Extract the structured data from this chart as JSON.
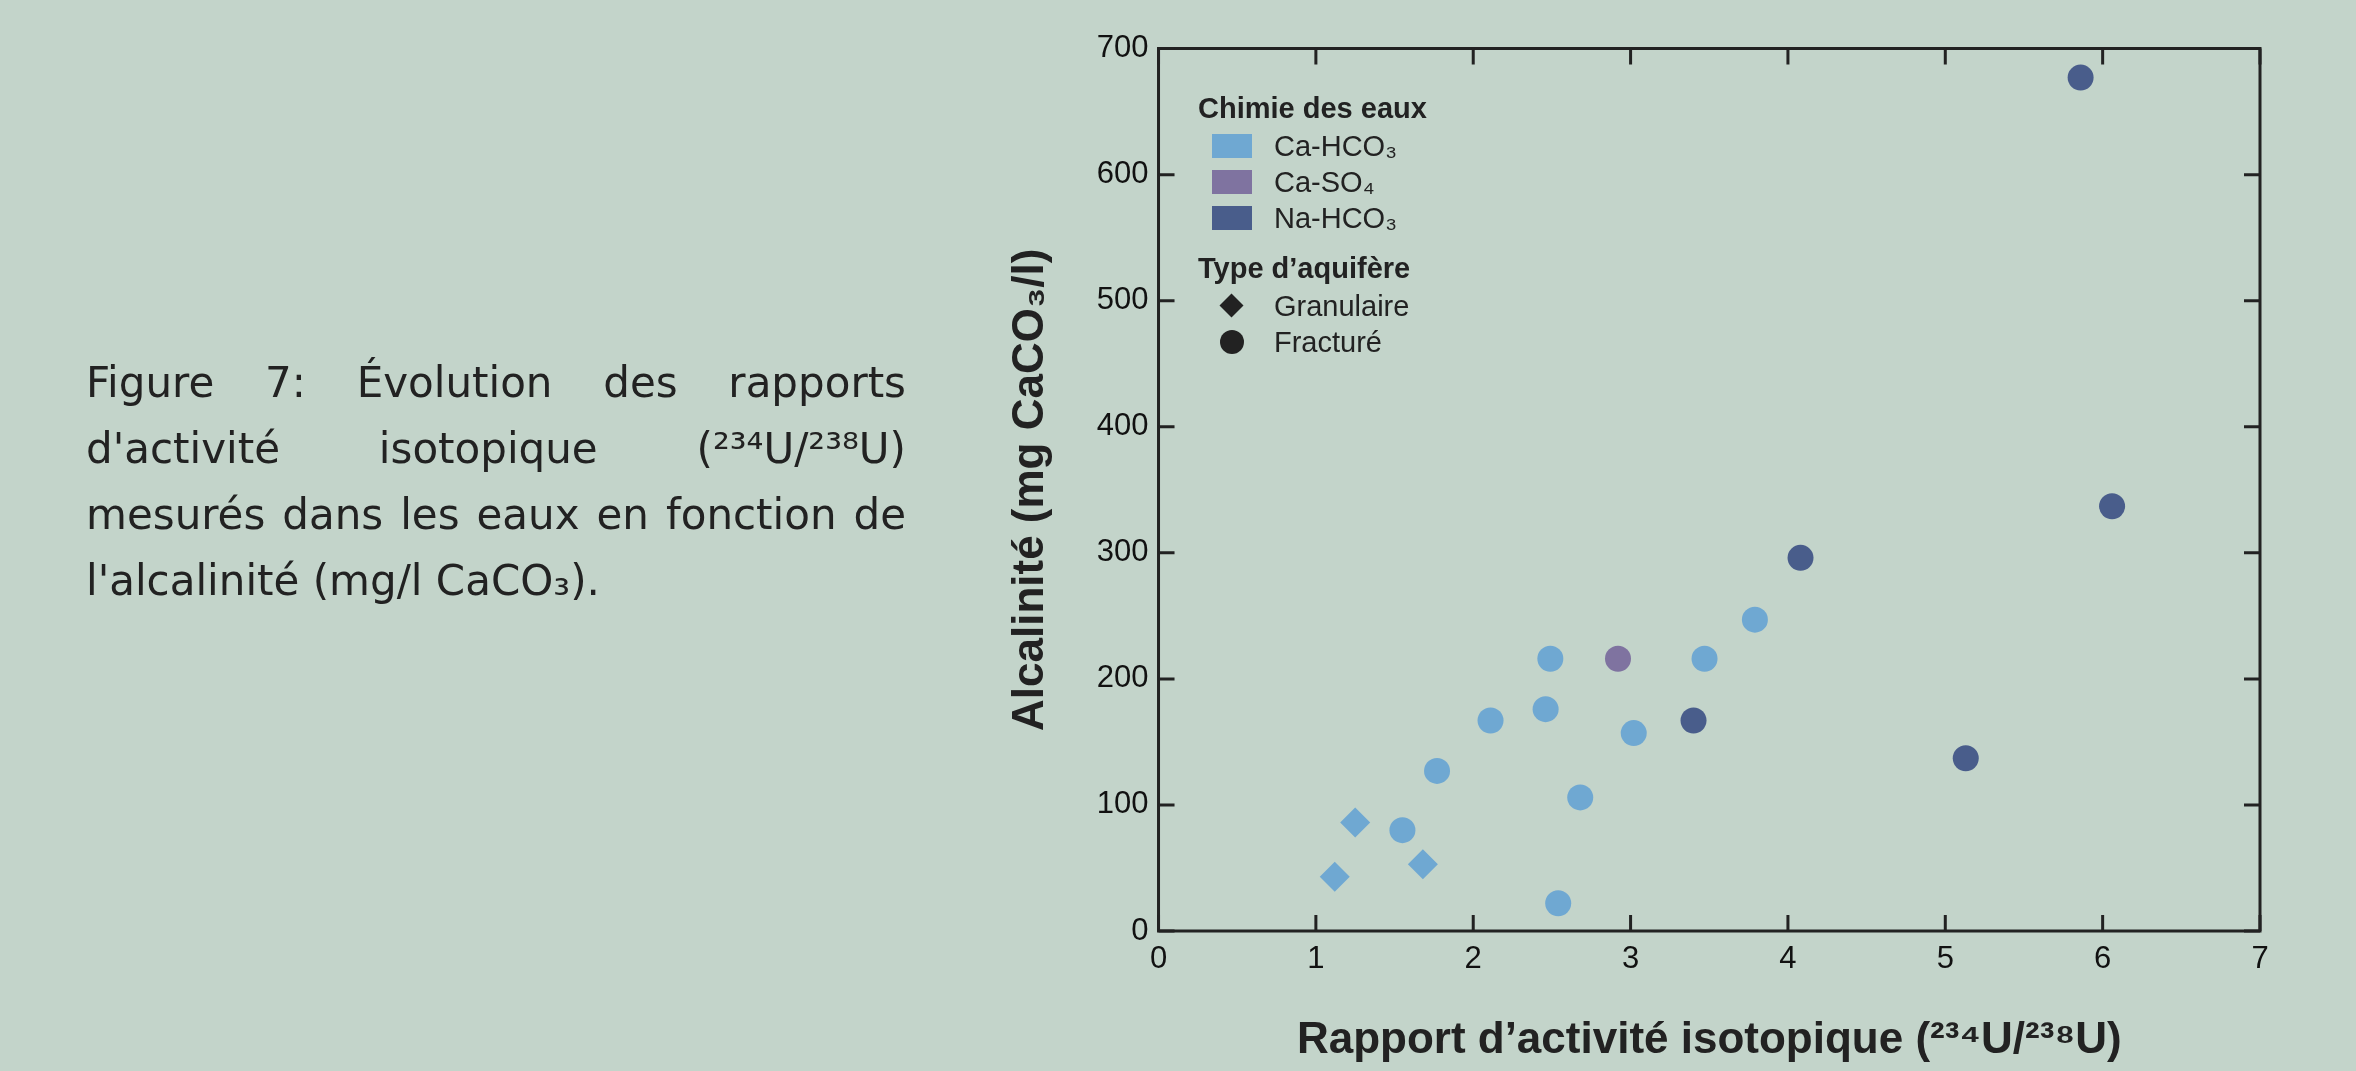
{
  "chart_data": {
    "type": "scatter",
    "title": "Figure 7: Évolution des rapports d'activité isotopique (²³⁴U/²³⁸U) mesurés dans les eaux en fonction de l'alcalinité (mg/l CaCO₃).",
    "xlabel": "Rapport d’activité isotopique (²³⁴U/²³⁸U)",
    "ylabel": "Alcalinité (mg CaCO₃/l)",
    "legend_title": "Chimie des eaux",
    "legend": "top left",
    "grid": false,
    "xlim": [
      0,
      7
    ],
    "xticks": [
      0,
      1,
      2,
      3,
      4,
      5,
      6,
      7
    ],
    "ylim": [
      0,
      700
    ],
    "yticks": [
      0,
      100,
      200,
      300,
      400,
      500,
      600,
      700
    ],
    "annotations": [
      "Type d’aquifère",
      "Granulaire",
      "Fracturé"
    ],
    "series": [
      {
        "name": "Ca-HCO₃",
        "color": "#6fa8d2",
        "marker": "circle",
        "x": [
          1.55,
          1.77,
          2.11,
          2.46,
          2.49,
          2.54,
          2.68,
          3.02,
          3.47,
          3.79
        ],
        "values": [
          80,
          127,
          167,
          176,
          216,
          22,
          106,
          157,
          216,
          247
        ]
      },
      {
        "name": "Ca-SO₄",
        "color": "#7f73a0",
        "marker": "circle",
        "x": [
          2.92
        ],
        "values": [
          216
        ]
      },
      {
        "name": "Na-HCO₃",
        "color": "#495d8b",
        "marker": "circle",
        "x": [
          3.4,
          4.08,
          5.13,
          5.86,
          6.06
        ],
        "values": [
          167,
          296,
          137,
          677,
          337
        ]
      },
      {
        "color": "#6fa8d2",
        "marker": "diamond",
        "x": [
          1.12,
          1.25,
          1.68
        ],
        "values": [
          43,
          86,
          53
        ]
      }
    ]
  }
}
